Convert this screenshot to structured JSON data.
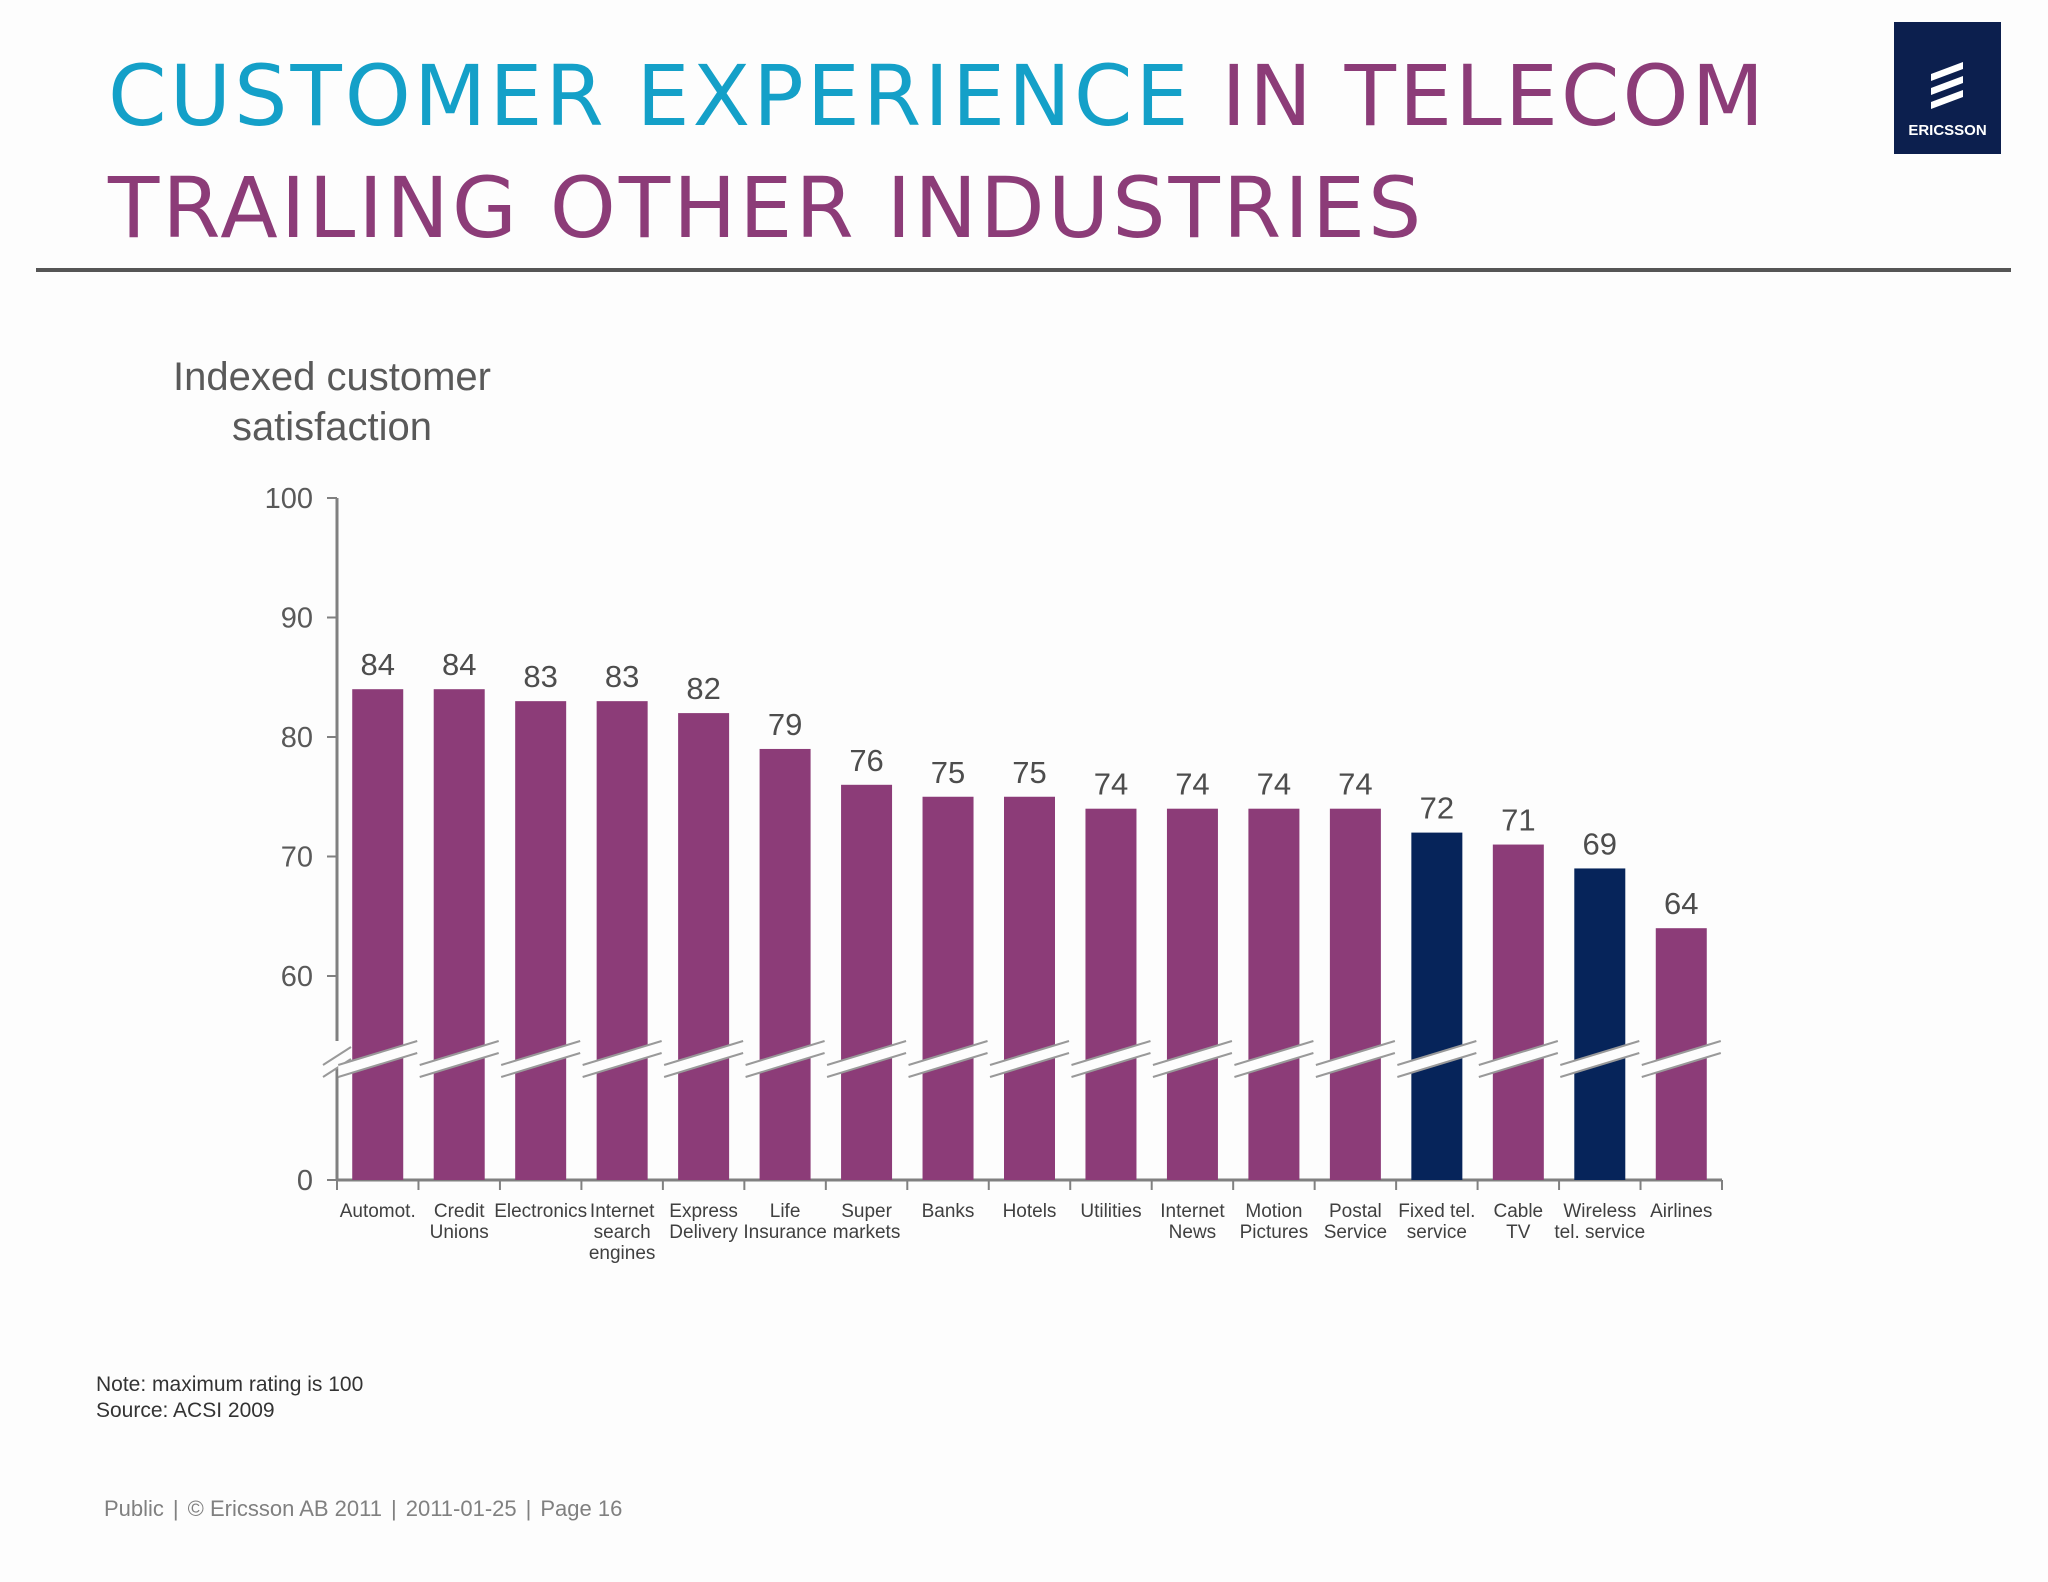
{
  "header": {
    "title_part1": "Customer Experience",
    "title_part2": "in Telecom",
    "title_line2": "trailing other industries",
    "colors": {
      "title_blue": "#14a0c8",
      "title_purple": "#8c3c78"
    }
  },
  "logo": {
    "icon": "ericsson-logo-icon",
    "text": "ERICSSON",
    "background": "#0c1f4e"
  },
  "chart_data": {
    "type": "bar",
    "ylabel": "Indexed customer satisfaction",
    "ylabel_lines": [
      "Indexed customer",
      "satisfaction"
    ],
    "y_ticks": [
      0,
      60,
      70,
      80,
      90,
      100
    ],
    "ylim": [
      0,
      100
    ],
    "axis_break": true,
    "grid": false,
    "categories": [
      [
        "Automot."
      ],
      [
        "Credit",
        "Unions"
      ],
      [
        "Electronics"
      ],
      [
        "Internet",
        "search",
        "engines"
      ],
      [
        "Express",
        "Delivery"
      ],
      [
        "Life",
        "Insurance"
      ],
      [
        "Super",
        "markets"
      ],
      [
        "Banks"
      ],
      [
        "Hotels"
      ],
      [
        "Utilities"
      ],
      [
        "Internet",
        "News"
      ],
      [
        "Motion",
        "Pictures"
      ],
      [
        "Postal",
        "Service"
      ],
      [
        "Fixed tel.",
        "service"
      ],
      [
        "Cable",
        "TV"
      ],
      [
        "Wireless",
        "tel. service"
      ],
      [
        "Airlines"
      ]
    ],
    "values": [
      84,
      84,
      83,
      83,
      82,
      79,
      76,
      75,
      75,
      74,
      74,
      74,
      74,
      72,
      71,
      69,
      64
    ],
    "highlighted": [
      false,
      false,
      false,
      false,
      false,
      false,
      false,
      false,
      false,
      false,
      false,
      false,
      false,
      true,
      false,
      true,
      false
    ],
    "colors": {
      "default": "#8c3c78",
      "highlight": "#06245a"
    }
  },
  "notes": {
    "note": "Note: maximum rating is 100",
    "source": "Source: ACSI 2009"
  },
  "footer": {
    "classification": "Public",
    "copyright": "© Ericsson AB 2011",
    "date": "2011-01-25",
    "page": "Page 16"
  }
}
